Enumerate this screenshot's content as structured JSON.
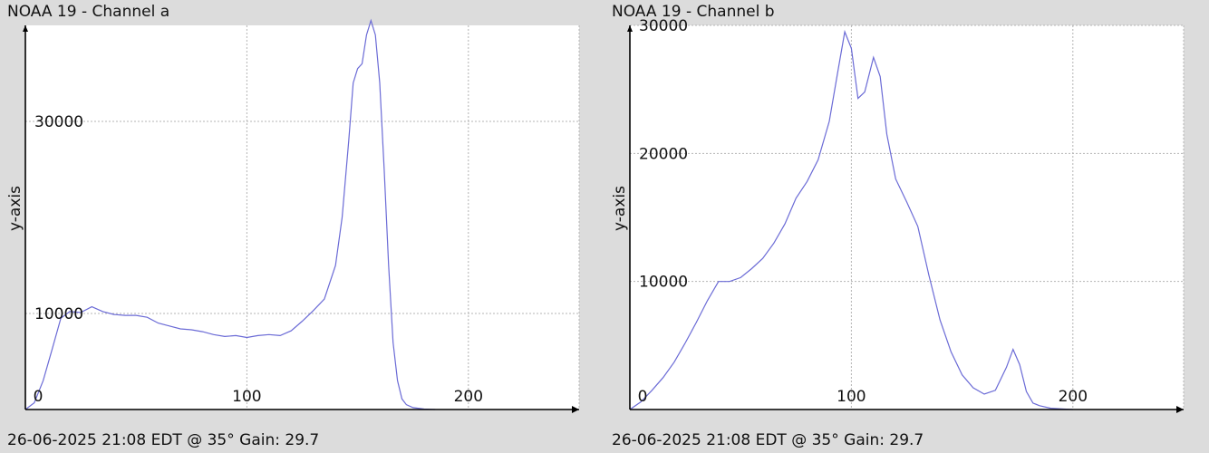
{
  "chart_data": [
    {
      "type": "line",
      "title": "NOAA 19 - Channel a",
      "footer": "26-06-2025 21:08 EDT @ 35° Gain: 29.7",
      "xlabel": "",
      "ylabel": "y-axis",
      "xlim": [
        0,
        250
      ],
      "ylim": [
        0,
        40000
      ],
      "x_ticks": [
        0,
        100,
        200
      ],
      "y_ticks": [
        10000,
        30000
      ],
      "x_tick_labels": [
        "0",
        "100",
        "200"
      ],
      "y_tick_labels": [
        "10000",
        "30000"
      ],
      "grid": true,
      "line_color": "#6b6bd6",
      "series": [
        {
          "x": [
            0,
            4,
            8,
            12,
            16,
            20,
            25,
            30,
            35,
            40,
            45,
            50,
            55,
            60,
            65,
            70,
            75,
            80,
            85,
            90,
            95,
            100,
            105,
            110,
            115,
            120,
            125,
            130,
            135,
            140,
            143,
            146,
            148,
            150,
            152,
            154,
            156,
            158,
            160,
            162,
            164,
            166,
            168,
            170,
            172,
            175,
            180,
            185
          ],
          "y": [
            0,
            700,
            3000,
            6200,
            9500,
            10200,
            10100,
            10700,
            10200,
            9900,
            9800,
            9800,
            9600,
            9000,
            8700,
            8400,
            8300,
            8100,
            7800,
            7600,
            7700,
            7500,
            7700,
            7800,
            7700,
            8200,
            9200,
            10300,
            11500,
            15000,
            20000,
            28000,
            34000,
            35500,
            36000,
            39000,
            40500,
            39000,
            34000,
            25000,
            15000,
            7000,
            3000,
            1100,
            500,
            200,
            50,
            0
          ]
        }
      ]
    },
    {
      "type": "line",
      "title": "NOAA 19 - Channel b",
      "footer": "26-06-2025 21:08 EDT @ 35° Gain: 29.7",
      "xlabel": "",
      "ylabel": "y-axis",
      "xlim": [
        0,
        250
      ],
      "ylim": [
        0,
        30000
      ],
      "x_ticks": [
        0,
        100,
        200
      ],
      "y_ticks": [
        10000,
        20000,
        30000
      ],
      "x_tick_labels": [
        "0",
        "100",
        "200"
      ],
      "y_tick_labels": [
        "10000",
        "20000",
        "30000"
      ],
      "grid": true,
      "line_color": "#6b6bd6",
      "series": [
        {
          "x": [
            0,
            5,
            10,
            15,
            20,
            25,
            30,
            35,
            40,
            45,
            50,
            55,
            60,
            65,
            70,
            75,
            80,
            85,
            90,
            94,
            97,
            100,
            103,
            106,
            110,
            113,
            116,
            120,
            125,
            130,
            135,
            140,
            145,
            150,
            155,
            160,
            165,
            170,
            173,
            176,
            179,
            182,
            185,
            190,
            195,
            200
          ],
          "y": [
            0,
            600,
            1500,
            2500,
            3700,
            5200,
            6800,
            8500,
            10000,
            10000,
            10300,
            11000,
            11800,
            13000,
            14500,
            16500,
            17800,
            19500,
            22500,
            26500,
            29500,
            28200,
            24300,
            24800,
            27500,
            26000,
            21500,
            18000,
            16200,
            14300,
            10500,
            7000,
            4500,
            2700,
            1700,
            1200,
            1500,
            3300,
            4700,
            3500,
            1400,
            500,
            300,
            100,
            50,
            0
          ]
        }
      ]
    }
  ]
}
